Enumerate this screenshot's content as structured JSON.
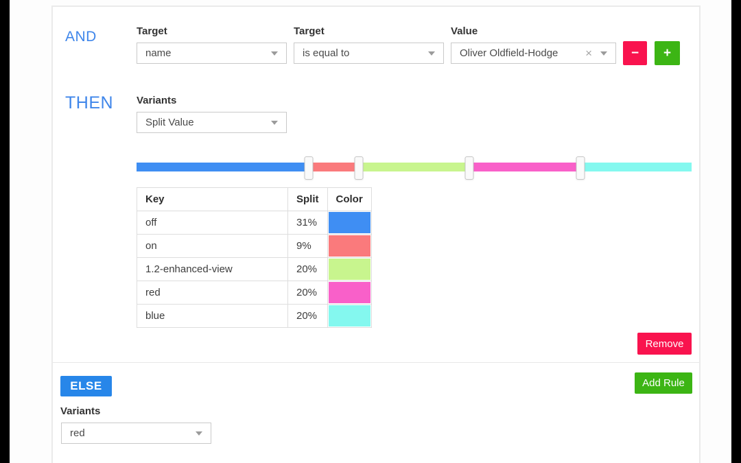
{
  "colors": {
    "accent_blue": "#3f86ea",
    "badge_blue": "#2786e9",
    "danger_red": "#f9134e",
    "success_green": "#3cb514"
  },
  "rule": {
    "and_label": "AND",
    "then_label": "THEN",
    "fields": [
      {
        "label": "Target",
        "value": "name"
      },
      {
        "label": "Target",
        "value": "is equal to"
      },
      {
        "label": "Value",
        "value": "Oliver Oldfield-Hodge",
        "clear_glyph": "×"
      }
    ],
    "remove_condition_glyph": "−",
    "add_condition_glyph": "+",
    "variants": {
      "label": "Variants",
      "value": "Split Value"
    },
    "split_table": {
      "headers": [
        "Key",
        "Split",
        "Color"
      ],
      "rows": [
        {
          "key": "off",
          "split": "31%",
          "color": "#3f8ef3"
        },
        {
          "key": "on",
          "split": "9%",
          "color": "#fa7a7c"
        },
        {
          "key": "1.2-enhanced-view",
          "split": "20%",
          "color": "#c8f58e"
        },
        {
          "key": "red",
          "split": "20%",
          "color": "#f960c9"
        },
        {
          "key": "blue",
          "split": "20%",
          "color": "#84f8ef"
        }
      ]
    },
    "remove_label": "Remove"
  },
  "else_section": {
    "label": "ELSE",
    "add_rule_label": "Add Rule",
    "variants": {
      "label": "Variants",
      "value": "red"
    }
  }
}
